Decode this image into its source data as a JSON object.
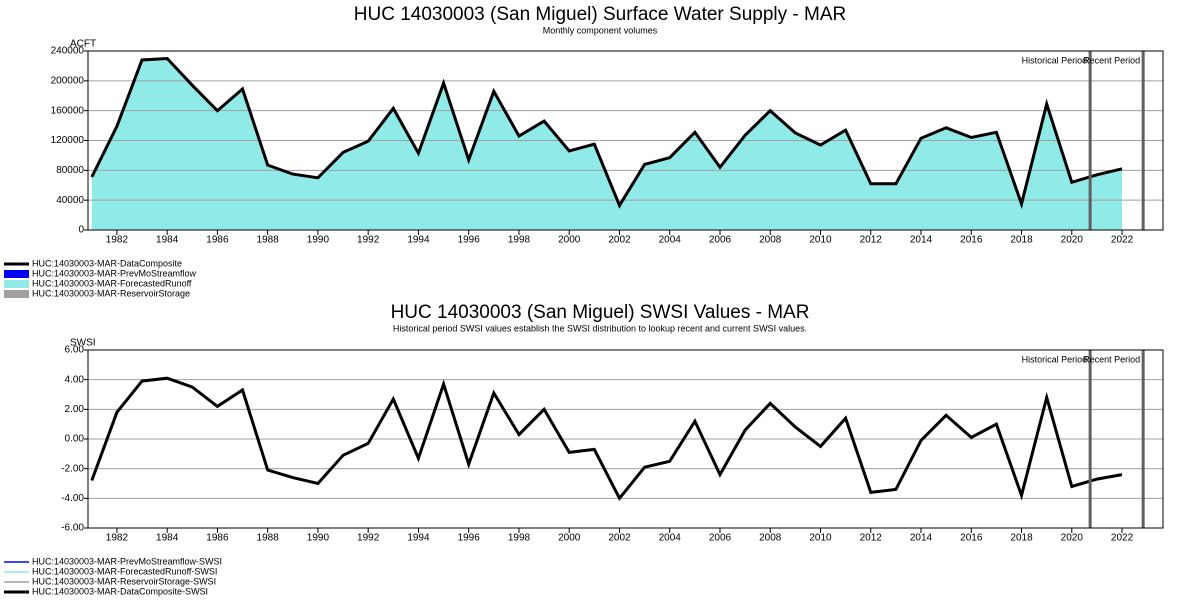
{
  "chart_data": [
    {
      "type": "area",
      "title": "HUC 14030003 (San Miguel) Surface Water Supply - MAR",
      "subtitle": "Monthly component volumes",
      "y_label": "ACFT",
      "x": [
        1981,
        1982,
        1983,
        1984,
        1985,
        1986,
        1987,
        1988,
        1989,
        1990,
        1991,
        1992,
        1993,
        1994,
        1995,
        1996,
        1997,
        1998,
        1999,
        2000,
        2001,
        2002,
        2003,
        2004,
        2005,
        2006,
        2007,
        2008,
        2009,
        2010,
        2011,
        2012,
        2013,
        2014,
        2015,
        2016,
        2017,
        2018,
        2019,
        2020,
        2021,
        2022
      ],
      "series": [
        {
          "name": "HUC:14030003-MAR-DataComposite",
          "color": "#000000",
          "style": "line",
          "values": [
            71000,
            139000,
            228000,
            230000,
            194000,
            160000,
            189000,
            87000,
            75000,
            70000,
            104000,
            119000,
            163000,
            103000,
            197000,
            94000,
            186000,
            126000,
            146000,
            106000,
            115000,
            33000,
            88000,
            97000,
            131000,
            84000,
            127000,
            160000,
            130000,
            114000,
            134000,
            62000,
            62000,
            123000,
            137000,
            124000,
            131000,
            35000,
            169000,
            64000,
            74000,
            82000
          ]
        },
        {
          "name": "HUC:14030003-MAR-PrevMoStreamflow",
          "color": "#0000ff",
          "style": "box"
        },
        {
          "name": "HUC:14030003-MAR-ForecastedRunoff",
          "color": "#90ebe8",
          "style": "area",
          "values": [
            71000,
            139000,
            228000,
            230000,
            194000,
            160000,
            189000,
            87000,
            75000,
            70000,
            104000,
            119000,
            163000,
            103000,
            197000,
            94000,
            186000,
            126000,
            146000,
            106000,
            115000,
            33000,
            88000,
            97000,
            131000,
            84000,
            127000,
            160000,
            130000,
            114000,
            134000,
            62000,
            62000,
            123000,
            137000,
            124000,
            131000,
            35000,
            169000,
            64000,
            74000,
            82000
          ]
        },
        {
          "name": "HUC:14030003-MAR-ReservoirStorage",
          "color": "#a0a0a0",
          "style": "box"
        }
      ],
      "xlim": [
        1980.85,
        2023.63
      ],
      "xticks": [
        1982,
        1984,
        1986,
        1988,
        1990,
        1992,
        1994,
        1996,
        1998,
        2000,
        2002,
        2004,
        2006,
        2008,
        2010,
        2012,
        2014,
        2016,
        2018,
        2020,
        2022
      ],
      "ylim": [
        0,
        240000
      ],
      "yticks": [
        0,
        40000,
        80000,
        120000,
        160000,
        200000,
        240000
      ],
      "grid": true,
      "periods": [
        {
          "x": 2020.73,
          "label": "Historical Period"
        },
        {
          "x": 2022.84,
          "label": "Recent Period"
        }
      ]
    },
    {
      "type": "line",
      "title": "HUC 14030003 (San Miguel) SWSI Values - MAR",
      "subtitle": "Historical period SWSI values establish the SWSI distribution to lookup recent and current SWSI values.",
      "y_label": "SWSI",
      "x": [
        1981,
        1982,
        1983,
        1984,
        1985,
        1986,
        1987,
        1988,
        1989,
        1990,
        1991,
        1992,
        1993,
        1994,
        1995,
        1996,
        1997,
        1998,
        1999,
        2000,
        2001,
        2002,
        2003,
        2004,
        2005,
        2006,
        2007,
        2008,
        2009,
        2010,
        2011,
        2012,
        2013,
        2014,
        2015,
        2016,
        2017,
        2018,
        2019,
        2020,
        2021,
        2022
      ],
      "series": [
        {
          "name": "HUC:14030003-MAR-PrevMoStreamflow-SWSI",
          "color": "#0000ff",
          "style": "legend-line"
        },
        {
          "name": "HUC:14030003-MAR-ForecastedRunoff-SWSI",
          "color": "#90ebe8",
          "style": "legend-line"
        },
        {
          "name": "HUC:14030003-MAR-ReservoirStorage-SWSI",
          "color": "#a0a0a0",
          "style": "legend-line"
        },
        {
          "name": "HUC:14030003-MAR-DataComposite-SWSI",
          "color": "#000000",
          "style": "line",
          "values": [
            -2.8,
            1.8,
            3.9,
            4.1,
            3.5,
            2.2,
            3.3,
            -2.1,
            -2.6,
            -3.0,
            -1.1,
            -0.3,
            2.7,
            -1.3,
            3.7,
            -1.7,
            3.1,
            0.3,
            2.0,
            -0.9,
            -0.7,
            -4.0,
            -1.9,
            -1.5,
            1.2,
            -2.4,
            0.6,
            2.4,
            0.8,
            -0.5,
            1.4,
            -3.6,
            -3.4,
            -0.1,
            1.6,
            0.1,
            1.0,
            -3.8,
            2.8,
            -3.2,
            -2.7,
            -2.4
          ]
        }
      ],
      "xlim": [
        1980.85,
        2023.63
      ],
      "xticks": [
        1982,
        1984,
        1986,
        1988,
        1990,
        1992,
        1994,
        1996,
        1998,
        2000,
        2002,
        2004,
        2006,
        2008,
        2010,
        2012,
        2014,
        2016,
        2018,
        2020,
        2022
      ],
      "ylim": [
        -6,
        6
      ],
      "yticks": [
        {
          "value": -6,
          "label": "-6.00"
        },
        {
          "value": -4,
          "label": "-4.00"
        },
        {
          "value": -2,
          "label": "-2.00"
        },
        {
          "value": 0,
          "label": "0.00"
        },
        {
          "value": 2,
          "label": "2.00"
        },
        {
          "value": 4,
          "label": "4.00"
        },
        {
          "value": 6,
          "label": "6.00"
        }
      ],
      "grid": true,
      "periods": [
        {
          "x": 2020.73,
          "label": "Historical Period"
        },
        {
          "x": 2022.84,
          "label": "Recent Period"
        }
      ]
    }
  ]
}
